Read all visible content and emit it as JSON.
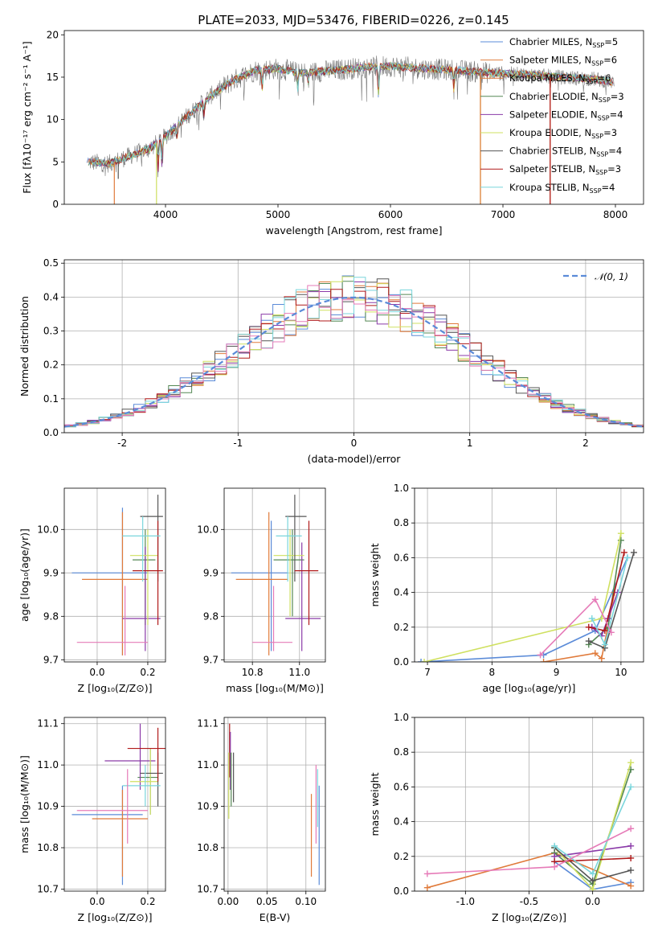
{
  "colors": {
    "chabrier_miles": "#5b8bd8",
    "salpeter_miles": "#e08040",
    "kroupa_miles": "#e07a3a",
    "chabrier_elodie": "#558855",
    "salpeter_elodie": "#8a3aa8",
    "kroupa_elodie": "#cfe060",
    "chabrier_stelib": "#555555",
    "salpeter_stelib": "#b01a1a",
    "kroupa_stelib": "#7ad6dc",
    "extra_pink": "#e67bb8",
    "gaussian": "#5b8bd8",
    "grid": "#b0b0b0"
  },
  "chart_data": [
    {
      "id": "spectrum",
      "type": "line",
      "title": "PLATE=2033, MJD=53476, FIBERID=0226, z=0.145",
      "xlabel": "wavelength [Angstrom, rest frame]",
      "ylabel": "Flux [fλ10⁻¹⁷ erg cm⁻² s⁻¹ A⁻¹]",
      "xlim": [
        3100,
        8250
      ],
      "ylim": [
        0,
        20.5
      ],
      "xticks": [
        4000,
        5000,
        6000,
        7000,
        8000
      ],
      "yticks": [
        0,
        5,
        10,
        15,
        20
      ],
      "grid": false,
      "legend_position": "top-right",
      "series": [
        {
          "name": "Chabrier MILES, N_SSP=5",
          "sub": "SSP",
          "pre": "Chabrier MILES, N",
          "post": "=5",
          "color": "#5b8bd8"
        },
        {
          "name": "Salpeter MILES, N_SSP=6",
          "sub": "SSP",
          "pre": "Salpeter MILES, N",
          "post": "=6",
          "color": "#e08040"
        },
        {
          "name": "Kroupa MILES, N_SSP=6",
          "sub": "SSP",
          "pre": "Kroupa MILES, N",
          "post": "=6",
          "color": "#e07a3a"
        },
        {
          "name": "Chabrier ELODIE, N_SSP=3",
          "sub": "SSP",
          "pre": "Chabrier ELODIE, N",
          "post": "=3",
          "color": "#558855"
        },
        {
          "name": "Salpeter ELODIE, N_SSP=4",
          "sub": "SSP",
          "pre": "Salpeter ELODIE, N",
          "post": "=4",
          "color": "#8a3aa8"
        },
        {
          "name": "Kroupa ELODIE, N_SSP=3",
          "sub": "SSP",
          "pre": "Kroupa ELODIE, N",
          "post": "=3",
          "color": "#cfe060"
        },
        {
          "name": "Chabrier STELIB, N_SSP=4",
          "sub": "SSP",
          "pre": "Chabrier STELIB, N",
          "post": "=4",
          "color": "#555555"
        },
        {
          "name": "Salpeter STELIB, N_SSP=3",
          "sub": "SSP",
          "pre": "Salpeter STELIB, N",
          "post": "=3",
          "color": "#b01a1a"
        },
        {
          "name": "Kroupa STELIB, N_SSP=4",
          "sub": "SSP",
          "pre": "Kroupa STELIB, N",
          "post": "=4",
          "color": "#7ad6dc"
        }
      ],
      "continuum": {
        "x": [
          3300,
          3500,
          3700,
          3850,
          4000,
          4200,
          4400,
          4600,
          4800,
          5000,
          5200,
          5500,
          5800,
          6000,
          6300,
          6600,
          6900,
          7200,
          7500,
          7800,
          8000
        ],
        "y": [
          5.0,
          4.8,
          5.8,
          6.5,
          8.0,
          10.5,
          12.8,
          14.6,
          15.8,
          16.0,
          15.5,
          15.8,
          16.2,
          16.3,
          16.0,
          15.8,
          15.5,
          15.3,
          15.0,
          14.8,
          14.4
        ]
      }
    },
    {
      "id": "residuals",
      "type": "histogram",
      "xlabel": "(data-model)/error",
      "ylabel": "Normed distribution",
      "xlim": [
        -2.5,
        2.5
      ],
      "ylim": [
        0,
        0.51
      ],
      "xticks": [
        -2,
        -1,
        0,
        1,
        2
      ],
      "yticks": [
        0.0,
        0.1,
        0.2,
        0.3,
        0.4,
        0.5
      ],
      "grid": true,
      "legend_position": "top-right",
      "legend_label": "𝒩(0, 1)",
      "bin_width": 0.1,
      "bin_start": -2.5
    },
    {
      "id": "age_vs_Z",
      "type": "errorbar",
      "xlabel": "Z [log₁₀(Z/Z⊙)]",
      "ylabel": "age  [log₁₀(age/yr)]",
      "xlim": [
        -0.13,
        0.27
      ],
      "ylim": [
        9.695,
        10.095
      ],
      "xticks": [
        0.0,
        0.2
      ],
      "yticks": [
        9.7,
        9.8,
        9.9,
        10.0
      ],
      "grid": true,
      "points": [
        {
          "c": "#5b8bd8",
          "x": 0.1,
          "y": 9.9,
          "xe": [
            -0.1,
            0.2
          ],
          "ye": [
            9.71,
            10.05
          ]
        },
        {
          "c": "#e07a3a",
          "x": 0.1,
          "y": 9.885,
          "xe": [
            -0.06,
            0.2
          ],
          "ye": [
            9.71,
            10.04
          ]
        },
        {
          "c": "#558855",
          "x": 0.19,
          "y": 9.93,
          "xe": [
            0.14,
            0.23
          ],
          "ye": [
            9.78,
            10.0
          ]
        },
        {
          "c": "#8a3aa8",
          "x": 0.19,
          "y": 9.795,
          "xe": [
            0.1,
            0.25
          ],
          "ye": [
            9.72,
            9.96
          ]
        },
        {
          "c": "#cfe060",
          "x": 0.2,
          "y": 9.94,
          "xe": [
            0.13,
            0.24
          ],
          "ye": [
            9.78,
            10.0
          ]
        },
        {
          "c": "#555555",
          "x": 0.24,
          "y": 10.03,
          "xe": [
            0.17,
            0.26
          ],
          "ye": [
            9.88,
            10.08
          ]
        },
        {
          "c": "#b01a1a",
          "x": 0.24,
          "y": 9.905,
          "xe": [
            0.14,
            0.26
          ],
          "ye": [
            9.78,
            10.02
          ]
        },
        {
          "c": "#7ad6dc",
          "x": 0.18,
          "y": 9.985,
          "xe": [
            0.1,
            0.25
          ],
          "ye": [
            9.88,
            10.03
          ]
        },
        {
          "c": "#e67bb8",
          "x": 0.11,
          "y": 9.74,
          "xe": [
            -0.08,
            0.2
          ],
          "ye": [
            9.71,
            9.87
          ]
        }
      ]
    },
    {
      "id": "age_vs_mass",
      "type": "errorbar",
      "xlabel": "mass [log₁₀(M/M⊙)]",
      "ylabel": "",
      "xlim": [
        10.68,
        11.11
      ],
      "ylim": [
        9.695,
        10.095
      ],
      "xticks": [
        10.8,
        11.0
      ],
      "yticks": [
        9.7,
        9.8,
        9.9,
        10.0
      ],
      "grid": true,
      "points": [
        {
          "c": "#5b8bd8",
          "x": 10.88,
          "y": 9.9,
          "xe": [
            10.71,
            10.95
          ],
          "ye": [
            9.72,
            10.02
          ]
        },
        {
          "c": "#e07a3a",
          "x": 10.87,
          "y": 9.885,
          "xe": [
            10.73,
            10.95
          ],
          "ye": [
            9.71,
            10.04
          ]
        },
        {
          "c": "#558855",
          "x": 10.97,
          "y": 9.93,
          "xe": [
            10.89,
            11.02
          ],
          "ye": [
            9.8,
            10.0
          ]
        },
        {
          "c": "#8a3aa8",
          "x": 11.01,
          "y": 9.795,
          "xe": [
            10.94,
            11.09
          ],
          "ye": [
            9.72,
            9.97
          ]
        },
        {
          "c": "#cfe060",
          "x": 10.96,
          "y": 9.94,
          "xe": [
            10.89,
            11.02
          ],
          "ye": [
            9.8,
            10.0
          ]
        },
        {
          "c": "#555555",
          "x": 10.98,
          "y": 10.03,
          "xe": [
            10.94,
            11.03
          ],
          "ye": [
            9.88,
            10.08
          ]
        },
        {
          "c": "#b01a1a",
          "x": 11.04,
          "y": 9.905,
          "xe": [
            10.98,
            11.08
          ],
          "ye": [
            9.78,
            10.02
          ]
        },
        {
          "c": "#7ad6dc",
          "x": 10.95,
          "y": 9.985,
          "xe": [
            10.9,
            11.01
          ],
          "ye": [
            9.88,
            10.03
          ]
        },
        {
          "c": "#e67bb8",
          "x": 10.89,
          "y": 9.74,
          "xe": [
            10.8,
            10.97
          ],
          "ye": [
            9.72,
            9.87
          ]
        }
      ]
    },
    {
      "id": "weight_vs_age",
      "type": "line",
      "xlabel": "age  [log₁₀(age/yr)]",
      "ylabel": "mass weight",
      "xlim": [
        6.8,
        10.35
      ],
      "ylim": [
        0,
        1
      ],
      "xticks": [
        7,
        8,
        9,
        10
      ],
      "yticks": [
        0.0,
        0.2,
        0.4,
        0.6,
        0.8,
        1.0
      ],
      "grid": true,
      "series": [
        {
          "c": "#5b8bd8",
          "x": [
            6.9,
            8.8,
            9.6,
            10.1
          ],
          "y": [
            0.0,
            0.04,
            0.18,
            0.6
          ]
        },
        {
          "c": "#e07a3a",
          "x": [
            8.8,
            9.6,
            9.7,
            9.9
          ],
          "y": [
            0.0,
            0.05,
            0.02,
            0.4
          ]
        },
        {
          "c": "#558855",
          "x": [
            9.5,
            9.8,
            10.0
          ],
          "y": [
            0.1,
            0.2,
            0.7
          ]
        },
        {
          "c": "#8a3aa8",
          "x": [
            9.55,
            9.7,
            9.8,
            9.95
          ],
          "y": [
            0.2,
            0.15,
            0.25,
            0.4
          ]
        },
        {
          "c": "#cfe060",
          "x": [
            6.95,
            9.7,
            10.0
          ],
          "y": [
            0.0,
            0.25,
            0.74
          ]
        },
        {
          "c": "#555555",
          "x": [
            9.5,
            9.75,
            10.2
          ],
          "y": [
            0.12,
            0.08,
            0.63
          ]
        },
        {
          "c": "#b01a1a",
          "x": [
            9.5,
            9.75,
            10.05
          ],
          "y": [
            0.2,
            0.18,
            0.63
          ]
        },
        {
          "c": "#7ad6dc",
          "x": [
            9.55,
            9.75,
            10.1
          ],
          "y": [
            0.25,
            0.1,
            0.6
          ]
        },
        {
          "c": "#e67bb8",
          "x": [
            8.75,
            9.6,
            9.85
          ],
          "y": [
            0.04,
            0.36,
            0.17
          ]
        }
      ]
    },
    {
      "id": "mass_vs_Z",
      "type": "errorbar",
      "xlabel": "Z [log₁₀(Z/Z⊙)]",
      "ylabel": "mass [log₁₀(M/M⊙)]",
      "xlim": [
        -0.13,
        0.27
      ],
      "ylim": [
        10.695,
        11.115
      ],
      "xticks": [
        0.0,
        0.2
      ],
      "yticks": [
        10.7,
        10.8,
        10.9,
        11.0,
        11.1
      ],
      "grid": true,
      "points": [
        {
          "c": "#5b8bd8",
          "x": 0.1,
          "y": 10.88,
          "xe": [
            -0.1,
            0.18
          ],
          "ye": [
            10.71,
            10.95
          ]
        },
        {
          "c": "#e07a3a",
          "x": 0.1,
          "y": 10.87,
          "xe": [
            -0.02,
            0.2
          ],
          "ye": [
            10.73,
            10.94
          ]
        },
        {
          "c": "#558855",
          "x": 0.21,
          "y": 10.97,
          "xe": [
            0.16,
            0.24
          ],
          "ye": [
            10.88,
            11.04
          ]
        },
        {
          "c": "#8a3aa8",
          "x": 0.17,
          "y": 11.01,
          "xe": [
            0.03,
            0.23
          ],
          "ye": [
            10.94,
            11.1
          ]
        },
        {
          "c": "#cfe060",
          "x": 0.21,
          "y": 10.96,
          "xe": [
            0.13,
            0.24
          ],
          "ye": [
            10.88,
            11.04
          ]
        },
        {
          "c": "#555555",
          "x": 0.24,
          "y": 10.98,
          "xe": [
            0.17,
            0.26
          ],
          "ye": [
            10.9,
            11.03
          ]
        },
        {
          "c": "#b01a1a",
          "x": 0.24,
          "y": 11.04,
          "xe": [
            0.12,
            0.27
          ],
          "ye": [
            10.96,
            11.09
          ]
        },
        {
          "c": "#7ad6dc",
          "x": 0.19,
          "y": 10.95,
          "xe": [
            0.1,
            0.25
          ],
          "ye": [
            10.9,
            11.0
          ]
        },
        {
          "c": "#e67bb8",
          "x": 0.12,
          "y": 10.89,
          "xe": [
            -0.08,
            0.2
          ],
          "ye": [
            10.81,
            10.99
          ]
        }
      ]
    },
    {
      "id": "mass_vs_ebv",
      "type": "errorbar",
      "xlabel": "E(B-V)",
      "ylabel": "",
      "xlim": [
        -0.005,
        0.125
      ],
      "ylim": [
        10.695,
        11.115
      ],
      "xticks": [
        0.0,
        0.05,
        0.1
      ],
      "yticks": [
        10.7,
        10.8,
        10.9,
        11.0,
        11.1
      ],
      "grid": true,
      "points": [
        {
          "c": "#b01a1a",
          "x": 0.002,
          "y": 11.04,
          "xe": [
            0.002,
            0.002
          ],
          "ye": [
            10.97,
            11.1
          ]
        },
        {
          "c": "#8a3aa8",
          "x": 0.003,
          "y": 11.01,
          "xe": [
            0.003,
            0.003
          ],
          "ye": [
            10.94,
            11.08
          ]
        },
        {
          "c": "#cfe060",
          "x": 0.001,
          "y": 10.95,
          "xe": [
            0.001,
            0.001
          ],
          "ye": [
            10.87,
            11.03
          ]
        },
        {
          "c": "#558855",
          "x": 0.004,
          "y": 10.97,
          "xe": [
            0.004,
            0.004
          ],
          "ye": [
            10.9,
            11.03
          ]
        },
        {
          "c": "#555555",
          "x": 0.007,
          "y": 10.97,
          "xe": [
            0.007,
            0.007
          ],
          "ye": [
            10.91,
            11.03
          ]
        },
        {
          "c": "#e07a3a",
          "x": 0.107,
          "y": 10.85,
          "xe": [
            0.107,
            0.107
          ],
          "ye": [
            10.73,
            10.93
          ]
        },
        {
          "c": "#e67bb8",
          "x": 0.113,
          "y": 10.93,
          "xe": [
            0.113,
            0.113
          ],
          "ye": [
            10.81,
            11.0
          ]
        },
        {
          "c": "#5b8bd8",
          "x": 0.117,
          "y": 10.86,
          "xe": [
            0.117,
            0.117
          ],
          "ye": [
            10.71,
            10.95
          ]
        },
        {
          "c": "#7ad6dc",
          "x": 0.115,
          "y": 10.92,
          "xe": [
            0.115,
            0.115
          ],
          "ye": [
            10.85,
            10.99
          ]
        }
      ]
    },
    {
      "id": "weight_vs_Z",
      "type": "line",
      "xlabel": "Z [log₁₀(Z/Z⊙)]",
      "ylabel": "mass weight",
      "xlim": [
        -1.4,
        0.4
      ],
      "ylim": [
        0,
        1
      ],
      "xticks": [
        -1.0,
        -0.5,
        0.0
      ],
      "yticks": [
        0.0,
        0.2,
        0.4,
        0.6,
        0.8,
        1.0
      ],
      "grid": true,
      "series": [
        {
          "c": "#5b8bd8",
          "x": [
            -0.3,
            0.0,
            0.3
          ],
          "y": [
            0.17,
            0.01,
            0.05
          ]
        },
        {
          "c": "#e07a3a",
          "x": [
            -1.3,
            -0.3,
            0.3
          ],
          "y": [
            0.02,
            0.22,
            0.03
          ]
        },
        {
          "c": "#558855",
          "x": [
            -0.3,
            0.0,
            0.3
          ],
          "y": [
            0.22,
            0.04,
            0.7
          ]
        },
        {
          "c": "#8a3aa8",
          "x": [
            -0.3,
            0.3
          ],
          "y": [
            0.2,
            0.26
          ]
        },
        {
          "c": "#cfe060",
          "x": [
            -0.3,
            0.0,
            0.3
          ],
          "y": [
            0.25,
            0.01,
            0.74
          ]
        },
        {
          "c": "#555555",
          "x": [
            -0.3,
            0.0,
            0.3
          ],
          "y": [
            0.25,
            0.06,
            0.12
          ]
        },
        {
          "c": "#b01a1a",
          "x": [
            -0.3,
            0.3
          ],
          "y": [
            0.17,
            0.19
          ]
        },
        {
          "c": "#7ad6dc",
          "x": [
            -0.3,
            0.0,
            0.3
          ],
          "y": [
            0.26,
            0.1,
            0.6
          ]
        },
        {
          "c": "#e67bb8",
          "x": [
            -1.3,
            -0.3,
            0.3
          ],
          "y": [
            0.1,
            0.14,
            0.36
          ]
        }
      ]
    }
  ]
}
